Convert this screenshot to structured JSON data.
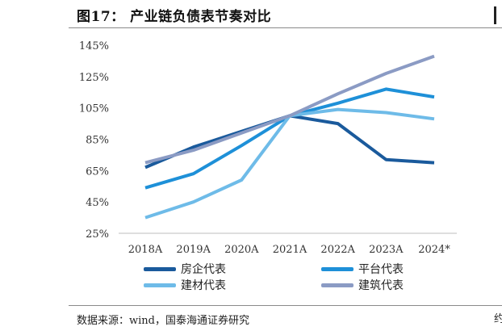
{
  "header": {
    "title": "图17：  产业链负债表节奏对比",
    "edge_char": "约"
  },
  "footer": {
    "source": "数据来源：wind，国泰海通证券研究"
  },
  "chart_data": {
    "type": "line",
    "title": "",
    "xlabel": "",
    "ylabel": "",
    "categories": [
      "2018A",
      "2019A",
      "2020A",
      "2021A",
      "2022A",
      "2023A",
      "2024*"
    ],
    "ylim": [
      25,
      145
    ],
    "yticks": [
      25,
      45,
      65,
      85,
      105,
      125,
      145
    ],
    "ytick_labels": [
      "25%",
      "45%",
      "65%",
      "85%",
      "105%",
      "125%",
      "145%"
    ],
    "legend_position": "bottom",
    "series": [
      {
        "name": "房企代表",
        "color": "#1a5a9c",
        "values": [
          67,
          80,
          90,
          100,
          95,
          72,
          70
        ]
      },
      {
        "name": "平台代表",
        "color": "#1e90d8",
        "values": [
          54,
          63,
          81,
          100,
          108,
          117,
          112
        ]
      },
      {
        "name": "建材代表",
        "color": "#6ebbe8",
        "values": [
          35,
          45,
          59,
          100,
          104,
          102,
          98
        ]
      },
      {
        "name": "建筑代表",
        "color": "#8b9bc4",
        "values": [
          70,
          78,
          89,
          100,
          114,
          127,
          138
        ]
      }
    ]
  }
}
